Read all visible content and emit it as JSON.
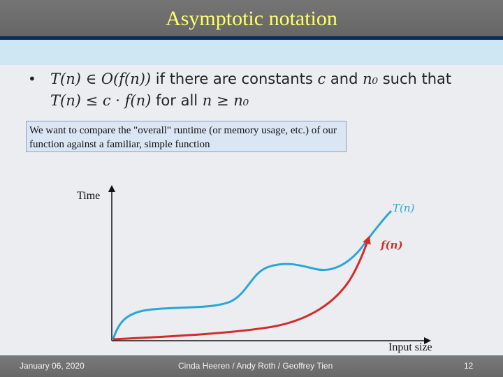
{
  "slide": {
    "title": "Asymptotic notation",
    "bullet": {
      "line1_a": "T(n) ∈ O(f(n))",
      "line1_b": " if there are constants ",
      "line1_c": "c",
      "line1_d": " and ",
      "line1_e": "n₀",
      "line1_f": " such that",
      "line2_a": "T(n) ≤ c · f(n)",
      "line2_b": " for all ",
      "line2_c": "n ≥ n₀"
    },
    "callout_text": "We want to compare the \"overall\" runtime (or memory usage, etc.) of our function against a familiar, simple function"
  },
  "diagram": {
    "y_axis_label": "Time",
    "x_axis_label": "Input size",
    "curve_T_label": "T(n)",
    "curve_f_label": "f(n)",
    "colors": {
      "T": "#2aa6d6",
      "f": "#d42a2a",
      "axis": "#111111"
    }
  },
  "footer": {
    "date": "January 06, 2020",
    "authors": "Cinda Heeren / Andy Roth / Geoffrey Tien",
    "page": "12"
  }
}
